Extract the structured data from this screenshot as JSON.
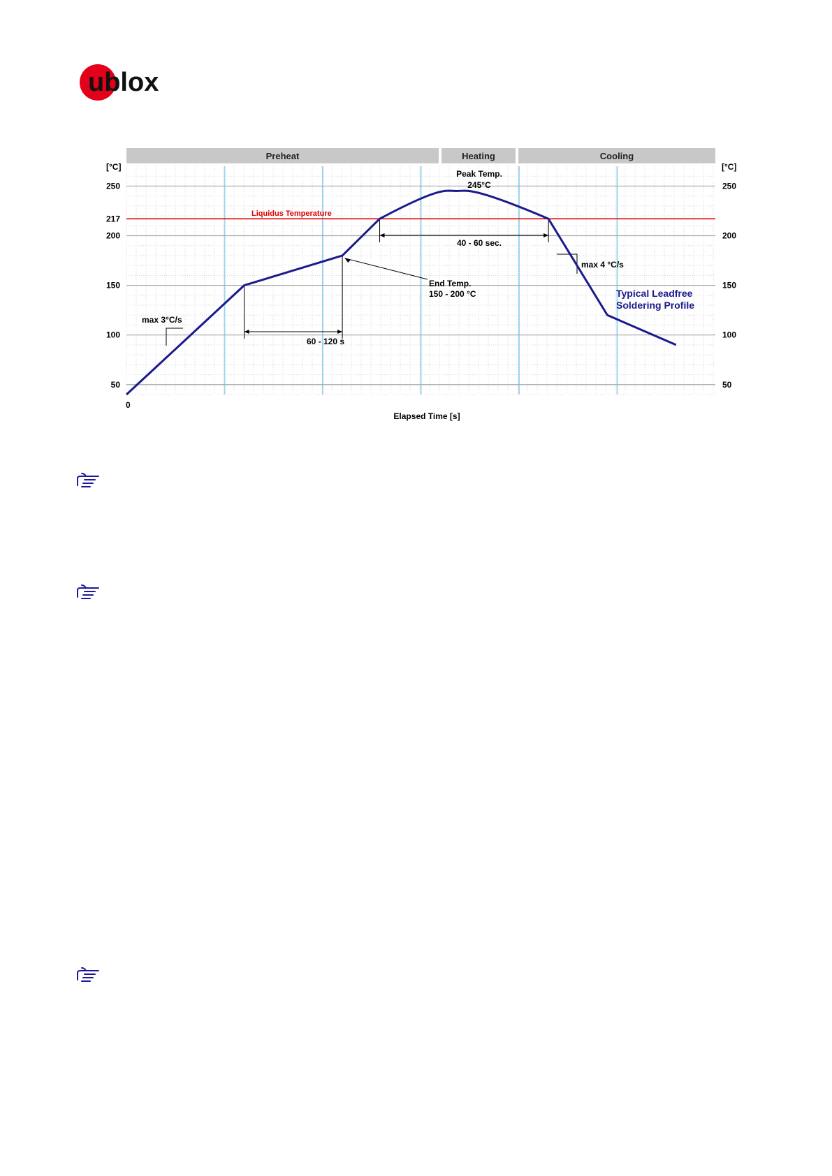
{
  "logo": {
    "text": "ublox",
    "accent_color": "#e2001a"
  },
  "chart_data": {
    "type": "line",
    "xlabel": "Elapsed Time [s]",
    "ylabel": "[°C]",
    "ylabel_right": "[°C]",
    "x_origin_label": "0",
    "ylim": [
      40,
      270
    ],
    "y_ticks": [
      50,
      100,
      150,
      200,
      217,
      250
    ],
    "y_ticks_right": [
      50,
      100,
      150,
      200,
      250
    ],
    "grid": true,
    "phases": [
      "Preheat",
      "Heating",
      "Cooling"
    ],
    "series": [
      {
        "name": "Typical Leadfree Soldering Profile",
        "color": "#1a1a8c",
        "x": [
          0,
          60,
          110,
          129,
          168,
          215,
          245,
          280
        ],
        "y": [
          40,
          150,
          180,
          217,
          245,
          217,
          120,
          90
        ]
      }
    ],
    "reference_lines": [
      {
        "label": "Liquidus Temperature",
        "y": 217,
        "color": "#e00000"
      }
    ],
    "annotations": {
      "peak_title": "Peak Temp.",
      "peak_value": "245°C",
      "time_above_liquidus": "40 - 60 sec.",
      "preheat_duration": "60 - 120 s",
      "end_temp_title": "End Temp.",
      "end_temp_value": "150 - 200 °C",
      "ramp_up": "max 3°C/s",
      "ramp_down": "max 4 °C/s",
      "legend_line1": "Typical Leadfree",
      "legend_line2": "Soldering Profile"
    }
  },
  "notes": {
    "icon": "pointing-hand-icon",
    "icon_color": "#1a1a99"
  }
}
